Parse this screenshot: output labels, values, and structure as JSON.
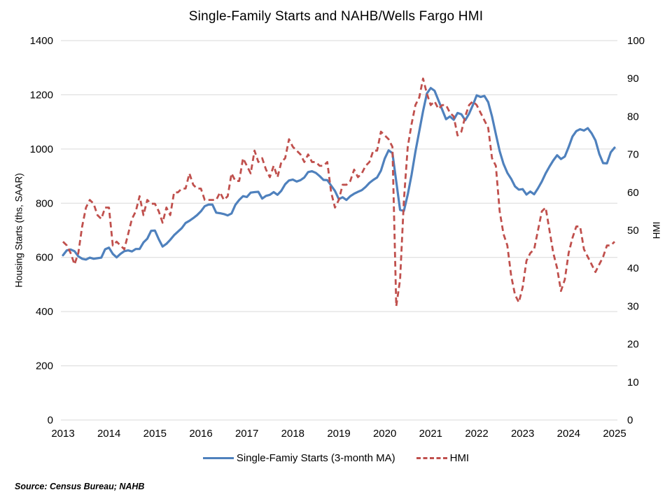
{
  "title": "Single-Family Starts and NAHB/Wells Fargo HMI",
  "source_note": "Source: Census Bureau; NAHB",
  "legend": {
    "starts_label": "Single-Famiy Starts (3-month MA)",
    "hmi_label": "HMI"
  },
  "colors": {
    "starts_line": "#4F81BD",
    "hmi_line": "#C0504D",
    "gridline": "#D9D9D9",
    "text": "#000000"
  },
  "chart_data": {
    "type": "line",
    "title": "Single-Family Starts and NAHB/Wells Fargo HMI",
    "x_frequency": "monthly",
    "x_range": "Jan 2013 - Jan 2025",
    "x_tick_labels": [
      "2013",
      "2014",
      "2015",
      "2016",
      "2017",
      "2018",
      "2019",
      "2020",
      "2021",
      "2022",
      "2023",
      "2024",
      "2025"
    ],
    "left_axis": {
      "label": "Housing Starts (ths, SAAR)",
      "min": 0,
      "max": 1400,
      "step": 200
    },
    "right_axis": {
      "label": "HMI",
      "min": 0,
      "max": 100,
      "step": 10
    },
    "grid": "horizontal-only",
    "legend_position": "bottom",
    "series": [
      {
        "name": "Single-Famiy Starts (3-month MA)",
        "axis": "left",
        "style": "solid",
        "color": "#4F81BD",
        "values": [
          608,
          626,
          629,
          623,
          604,
          595,
          592,
          599,
          595,
          597,
          599,
          630,
          636,
          613,
          600,
          613,
          623,
          626,
          622,
          631,
          631,
          655,
          669,
          698,
          699,
          667,
          640,
          650,
          665,
          682,
          695,
          708,
          727,
          735,
          745,
          756,
          770,
          789,
          795,
          795,
          765,
          763,
          760,
          755,
          762,
          794,
          812,
          826,
          823,
          839,
          841,
          842,
          817,
          827,
          831,
          841,
          831,
          846,
          870,
          884,
          887,
          880,
          885,
          895,
          915,
          918,
          912,
          900,
          886,
          885,
          865,
          845,
          815,
          822,
          812,
          826,
          835,
          842,
          848,
          860,
          875,
          886,
          895,
          920,
          965,
          995,
          985,
          880,
          775,
          772,
          832,
          905,
          990,
          1065,
          1140,
          1205,
          1225,
          1215,
          1180,
          1145,
          1110,
          1120,
          1108,
          1133,
          1128,
          1106,
          1130,
          1162,
          1198,
          1192,
          1196,
          1173,
          1120,
          1055,
          992,
          945,
          912,
          890,
          862,
          850,
          852,
          832,
          843,
          833,
          855,
          880,
          910,
          935,
          958,
          977,
          963,
          972,
          1007,
          1046,
          1066,
          1073,
          1068,
          1077,
          1058,
          1032,
          982,
          948,
          947,
          988,
          1005
        ]
      },
      {
        "name": "HMI",
        "axis": "right",
        "style": "dashed",
        "color": "#C0504D",
        "values": [
          47,
          46,
          44,
          41,
          44,
          51,
          56,
          58,
          57,
          54,
          53,
          56,
          56,
          46,
          47,
          46,
          45,
          49,
          53,
          55,
          59,
          54,
          58,
          57,
          57,
          55,
          52,
          56,
          54,
          60,
          60,
          61,
          61,
          65,
          62,
          61,
          61,
          58,
          58,
          58,
          58,
          60,
          58,
          59,
          65,
          63,
          63,
          69,
          67,
          65,
          71,
          68,
          69,
          66,
          64,
          67,
          64,
          68,
          69,
          74,
          72,
          71,
          70,
          68,
          70,
          68,
          68,
          67,
          67,
          68,
          60,
          56,
          58,
          62,
          62,
          63,
          66,
          64,
          65,
          67,
          68,
          71,
          71,
          76,
          75,
          74,
          72,
          30,
          37,
          58,
          72,
          78,
          83,
          85,
          90,
          86,
          83,
          84,
          82,
          83,
          83,
          81,
          80,
          75,
          76,
          80,
          83,
          84,
          83,
          81,
          79,
          77,
          69,
          67,
          55,
          49,
          46,
          38,
          33,
          31,
          35,
          42,
          44,
          45,
          50,
          55,
          56,
          50,
          44,
          40,
          34,
          37,
          44,
          48,
          51,
          51,
          45,
          43,
          41,
          39,
          41,
          43,
          46,
          46,
          47
        ]
      }
    ]
  }
}
